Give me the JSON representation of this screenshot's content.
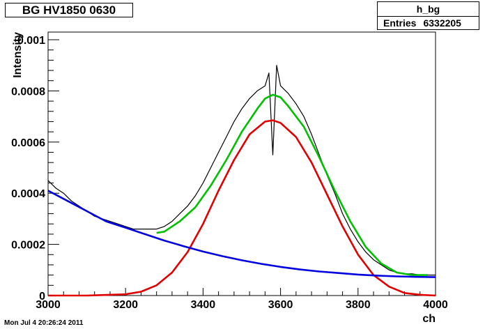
{
  "title": "BG HV1850 0630",
  "stats": {
    "name": "h_bg",
    "entries_label": "Entries",
    "entries_value": "6332205"
  },
  "footer": {
    "timestamp": "Mon Jul  4 20:26:24 2011"
  },
  "chart_data": {
    "type": "line",
    "xlabel": "ch",
    "ylabel": "Intensity",
    "xlim": [
      3000,
      4000
    ],
    "ylim": [
      0,
      0.00103
    ],
    "x_ticks": [
      3000,
      3200,
      3400,
      3600,
      3800,
      4000
    ],
    "x_tick_labels": [
      "3000",
      "3200",
      "3400",
      "3600",
      "3800",
      "4000"
    ],
    "y_ticks": [
      0,
      0.0002,
      0.0004,
      0.0006,
      0.0008,
      0.001
    ],
    "y_tick_labels": [
      "0",
      "0.0002",
      "0.0004",
      "0.0006",
      "0.0008",
      "0.001"
    ],
    "grid": false,
    "legend": "none",
    "series": [
      {
        "role": "data histogram",
        "color": "#000000",
        "x": [
          3000,
          3020,
          3040,
          3060,
          3080,
          3100,
          3120,
          3140,
          3160,
          3180,
          3200,
          3220,
          3240,
          3260,
          3280,
          3300,
          3320,
          3340,
          3360,
          3380,
          3400,
          3420,
          3440,
          3460,
          3480,
          3500,
          3520,
          3540,
          3560,
          3570,
          3580,
          3590,
          3600,
          3620,
          3640,
          3660,
          3680,
          3700,
          3720,
          3740,
          3760,
          3780,
          3800,
          3820,
          3840,
          3860,
          3880,
          3900,
          3920,
          3940,
          3960,
          3980,
          4000
        ],
        "y": [
          0.00045,
          0.00042,
          0.0004,
          0.00037,
          0.00035,
          0.00033,
          0.00031,
          0.0003,
          0.00029,
          0.00028,
          0.00027,
          0.00026,
          0.00026,
          0.00026,
          0.00026,
          0.00027,
          0.00029,
          0.00032,
          0.00035,
          0.00039,
          0.00044,
          0.0005,
          0.00056,
          0.00062,
          0.00068,
          0.00073,
          0.00077,
          0.0008,
          0.00082,
          0.00087,
          0.00055,
          0.0009,
          0.00082,
          0.00079,
          0.00075,
          0.0007,
          0.00063,
          0.00055,
          0.00047,
          0.0004,
          0.00032,
          0.00026,
          0.00021,
          0.00017,
          0.00014,
          0.00012,
          0.0001,
          9e-05,
          8.5e-05,
          8.5e-05,
          8e-05,
          8e-05,
          8e-05
        ]
      },
      {
        "role": "total fit",
        "color": "#00c000",
        "x": [
          3280,
          3300,
          3340,
          3380,
          3420,
          3460,
          3500,
          3540,
          3560,
          3580,
          3600,
          3620,
          3660,
          3700,
          3740,
          3780,
          3820,
          3860,
          3900,
          3940,
          3980
        ],
        "y": [
          0.000245,
          0.00025,
          0.00029,
          0.000345,
          0.00043,
          0.00053,
          0.00064,
          0.00073,
          0.00077,
          0.000785,
          0.000775,
          0.00074,
          0.00066,
          0.00054,
          0.00041,
          0.00029,
          0.00019,
          0.000125,
          9e-05,
          8e-05,
          8e-05
        ]
      },
      {
        "role": "gaussian component",
        "color": "#e00000",
        "x": [
          3000,
          3100,
          3200,
          3240,
          3280,
          3320,
          3360,
          3400,
          3440,
          3480,
          3520,
          3560,
          3580,
          3600,
          3640,
          3680,
          3720,
          3760,
          3800,
          3840,
          3880,
          3920,
          3960,
          4000
        ],
        "y": [
          0,
          0,
          5e-06,
          1.5e-05,
          4e-05,
          9e-05,
          0.00017,
          0.00028,
          0.00041,
          0.00053,
          0.00063,
          0.00068,
          0.000685,
          0.000675,
          0.00062,
          0.00052,
          0.000395,
          0.00027,
          0.00016,
          8e-05,
          3.5e-05,
          1e-05,
          3e-06,
          0
        ]
      },
      {
        "role": "background component",
        "color": "#0000e0",
        "x": [
          3000,
          3050,
          3100,
          3150,
          3200,
          3250,
          3300,
          3350,
          3400,
          3450,
          3500,
          3550,
          3600,
          3650,
          3700,
          3750,
          3800,
          3850,
          3900,
          3950,
          4000
        ],
        "y": [
          0.00041,
          0.00037,
          0.00033,
          0.00029,
          0.000265,
          0.00024,
          0.000215,
          0.000193,
          0.000172,
          0.000154,
          0.000138,
          0.000124,
          0.000112,
          0.000102,
          9.4e-05,
          8.8e-05,
          8.2e-05,
          7.8e-05,
          7.5e-05,
          7.3e-05,
          7.2e-05
        ]
      }
    ]
  }
}
